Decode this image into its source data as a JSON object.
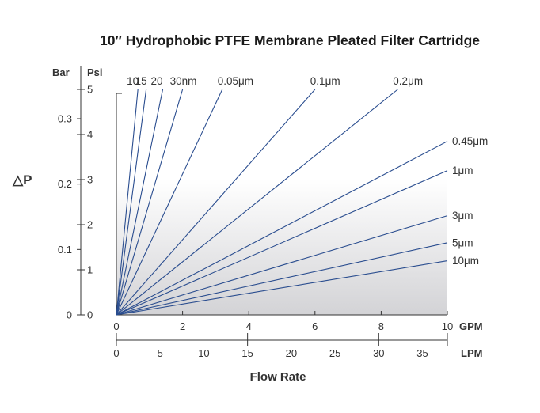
{
  "chart_data": {
    "type": "line",
    "title": "10″ Hydrophobic PTFE Membrane Pleated Filter Cartridge",
    "ylabel": "△P",
    "xlabel": "Flow Rate",
    "x_unit_primary": "GPM",
    "x_unit_secondary": "LPM",
    "y_unit_left": "Bar",
    "y_unit_right": "Psi",
    "xlim_gpm": [
      0,
      10
    ],
    "ylim_psi": [
      0,
      5
    ],
    "x_ticks_gpm": [
      "0",
      "2",
      "4",
      "6",
      "8",
      "10"
    ],
    "x_ticks_lpm": [
      "0",
      "5",
      "10",
      "15",
      "20",
      "25",
      "30",
      "35"
    ],
    "lpm_tick_values": [
      0,
      5,
      10,
      15,
      20,
      25,
      30,
      35
    ],
    "lpm_tick_mark_values": [
      0,
      15,
      30,
      37.85
    ],
    "y_ticks_psi": [
      "0",
      "1",
      "2",
      "3",
      "4",
      "5"
    ],
    "y_ticks_bar": [
      "0",
      "0.1",
      "0.2",
      "0.3"
    ],
    "bar_tick_values": [
      0,
      0.1,
      0.2,
      0.3
    ],
    "psi_per_bar": 14.5038,
    "lpm_per_gpm": 3.785,
    "series": [
      {
        "name": "10",
        "x": [
          0,
          0.65
        ],
        "y": [
          0,
          5
        ]
      },
      {
        "name": "15",
        "x": [
          0,
          0.9
        ],
        "y": [
          0,
          5
        ]
      },
      {
        "name": "20",
        "x": [
          0,
          1.4
        ],
        "y": [
          0,
          5
        ]
      },
      {
        "name": "30nm",
        "x": [
          0,
          2.0
        ],
        "y": [
          0,
          5
        ]
      },
      {
        "name": "0.05μm",
        "x": [
          0,
          3.2
        ],
        "y": [
          0,
          5
        ]
      },
      {
        "name": "0.1μm",
        "x": [
          0,
          6.0
        ],
        "y": [
          0,
          5
        ]
      },
      {
        "name": "0.2μm",
        "x": [
          0,
          8.5
        ],
        "y": [
          0,
          5
        ]
      },
      {
        "name": "0.45μm",
        "x": [
          0,
          10
        ],
        "y": [
          0,
          3.85
        ]
      },
      {
        "name": "1μm",
        "x": [
          0,
          10
        ],
        "y": [
          0,
          3.2
        ]
      },
      {
        "name": "3μm",
        "x": [
          0,
          10
        ],
        "y": [
          0,
          2.2
        ]
      },
      {
        "name": "5μm",
        "x": [
          0,
          10
        ],
        "y": [
          0,
          1.6
        ]
      },
      {
        "name": "10μm",
        "x": [
          0,
          10
        ],
        "y": [
          0,
          1.2
        ]
      }
    ],
    "grid": false,
    "background_gradient": true
  },
  "colors": {
    "line": "#2a4d8f",
    "gradient_top": "#ffffff",
    "gradient_bottom": "#d6d6d9"
  }
}
